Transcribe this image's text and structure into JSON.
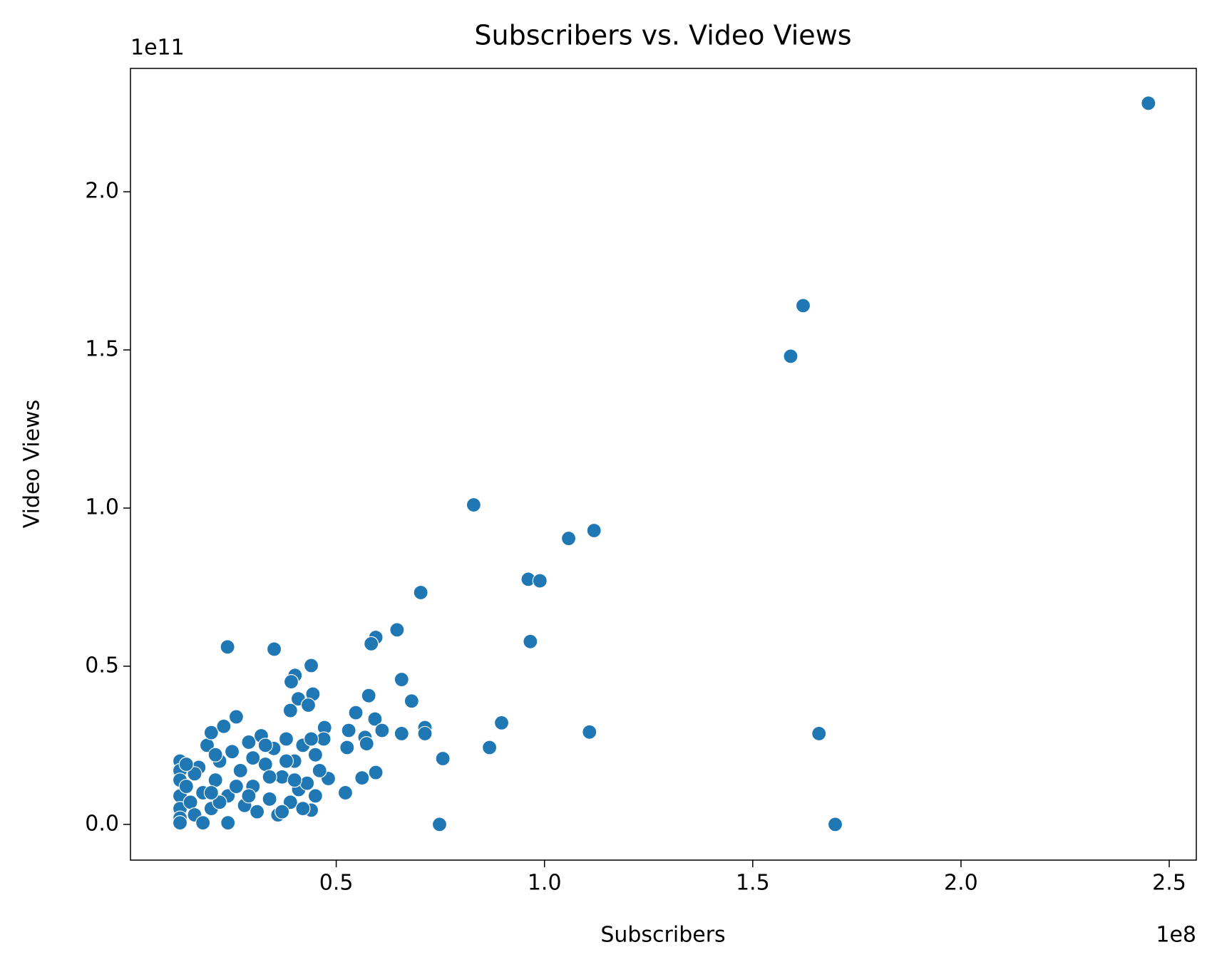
{
  "chart_data": {
    "type": "scatter",
    "title": "Subscribers vs. Video Views",
    "x_label": "Subscribers",
    "y_label": "Video Views",
    "x_offset_label": "1e8",
    "y_offset_label": "1e11",
    "color": "#1f77b4",
    "grid": false,
    "xlim": [
      0.006,
      2.565
    ],
    "ylim": [
      -0.113,
      2.39
    ],
    "xticks": [
      0.5,
      {
        "value": 1,
        "label": "1.0"
      },
      1.5,
      {
        "value": 2,
        "label": "2.0"
      },
      2.5
    ],
    "yticks": [
      {
        "value": 0,
        "label": "0.0"
      },
      0.5,
      {
        "value": 1,
        "label": "1.0"
      },
      1.5,
      {
        "value": 2,
        "label": "2.0"
      }
    ],
    "x": [
      2.45,
      1.621,
      1.591,
      0.83,
      1.058,
      1.119,
      0.961,
      0.989,
      0.703,
      0.966,
      0.646,
      0.595,
      0.584,
      0.239,
      0.351,
      0.44,
      0.401,
      0.392,
      0.444,
      0.657,
      0.681,
      0.578,
      0.409,
      0.433,
      0.39,
      0.897,
      1.108,
      1.659,
      1.698,
      0.748,
      0.756,
      0.868,
      0.713,
      0.713,
      0.657,
      0.593,
      0.61,
      0.547,
      0.53,
      0.526,
      0.569,
      0.573,
      0.595,
      0.562,
      0.522,
      0.472,
      0.481,
      0.125,
      0.125,
      0.125,
      0.125,
      0.125,
      0.125,
      0.125,
      0.14,
      0.15,
      0.16,
      0.17,
      0.18,
      0.19,
      0.2,
      0.2,
      0.21,
      0.22,
      0.23,
      0.24,
      0.24,
      0.25,
      0.26,
      0.27,
      0.28,
      0.29,
      0.3,
      0.31,
      0.32,
      0.33,
      0.34,
      0.35,
      0.36,
      0.37,
      0.38,
      0.39,
      0.4,
      0.41,
      0.42,
      0.43,
      0.44,
      0.45,
      0.46,
      0.47,
      0.16,
      0.18,
      0.22,
      0.26,
      0.3,
      0.34,
      0.38,
      0.42,
      0.44,
      0.21,
      0.29,
      0.33,
      0.37,
      0.4,
      0.45,
      0.14,
      0.2
    ],
    "y": [
      2.28,
      1.64,
      1.48,
      1.01,
      0.904,
      0.929,
      0.775,
      0.77,
      0.733,
      0.578,
      0.615,
      0.591,
      0.571,
      0.561,
      0.554,
      0.502,
      0.471,
      0.451,
      0.412,
      0.458,
      0.39,
      0.407,
      0.397,
      0.377,
      0.36,
      0.321,
      0.292,
      0.287,
      0.0,
      0.0,
      0.208,
      0.243,
      0.306,
      0.287,
      0.287,
      0.333,
      0.297,
      0.353,
      0.297,
      0.243,
      0.275,
      0.255,
      0.164,
      0.147,
      0.1,
      0.306,
      0.145,
      0.2,
      0.17,
      0.14,
      0.09,
      0.05,
      0.02,
      0.005,
      0.12,
      0.07,
      0.03,
      0.18,
      0.1,
      0.25,
      0.05,
      0.29,
      0.14,
      0.2,
      0.31,
      0.09,
      0.005,
      0.23,
      0.34,
      0.17,
      0.06,
      0.26,
      0.12,
      0.04,
      0.28,
      0.19,
      0.08,
      0.24,
      0.03,
      0.15,
      0.27,
      0.07,
      0.2,
      0.11,
      0.25,
      0.13,
      0.045,
      0.22,
      0.17,
      0.27,
      0.16,
      0.005,
      0.07,
      0.12,
      0.21,
      0.15,
      0.2,
      0.05,
      0.27,
      0.22,
      0.09,
      0.25,
      0.04,
      0.14,
      0.09,
      0.19,
      0.1
    ]
  }
}
